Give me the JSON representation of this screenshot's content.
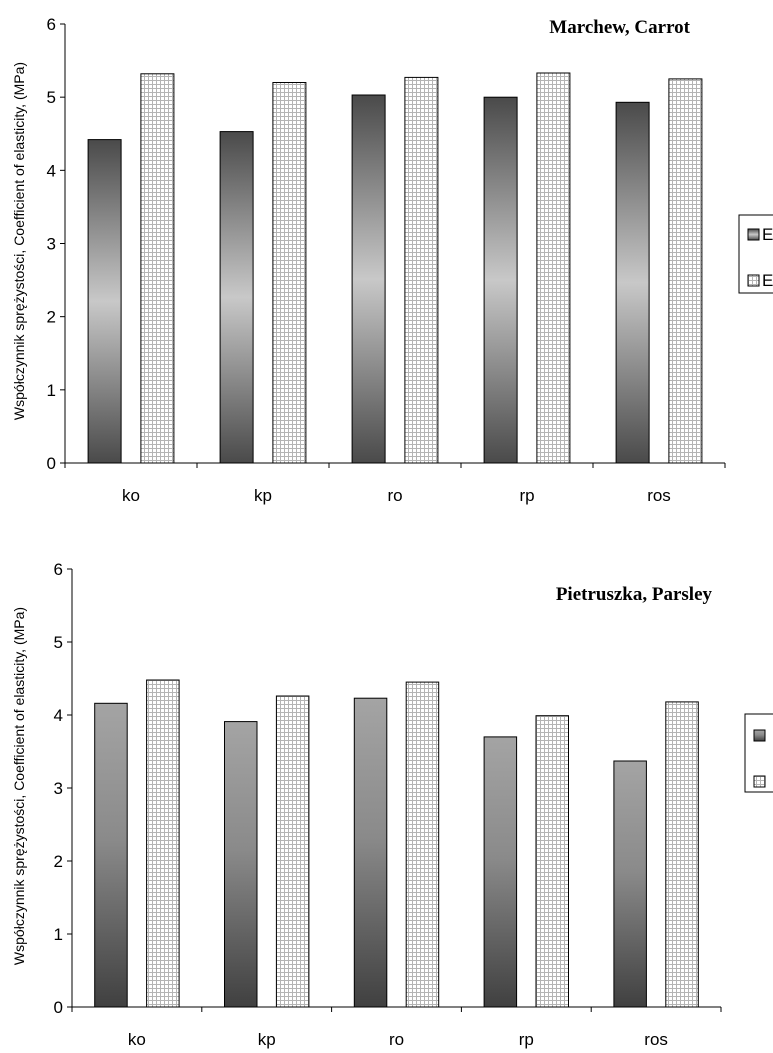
{
  "chart_data": [
    {
      "type": "bar",
      "title": "Marchew, Carrot",
      "ylabel": "Współczynnik sprężystości, Coefficient of elasticity, (MPa)",
      "xlabel": "",
      "categories": [
        "ko",
        "kp",
        "ro",
        "rp",
        "ros"
      ],
      "series": [
        {
          "name": "Ec",
          "values": [
            4.42,
            4.53,
            5.03,
            5.0,
            4.93
          ]
        },
        {
          "name": "Es",
          "values": [
            5.32,
            5.2,
            5.27,
            5.33,
            5.25
          ]
        }
      ],
      "ylim": [
        0,
        6
      ],
      "yticks": [
        0,
        1,
        2,
        3,
        4,
        5,
        6
      ],
      "grid": false,
      "legend_position": "right"
    },
    {
      "type": "bar",
      "title": "Pietruszka, Parsley",
      "ylabel": "Współczynnik sprężystości, Coefficient of elasticity, (MPa)",
      "xlabel": "",
      "categories": [
        "ko",
        "kp",
        "ro",
        "rp",
        "ros"
      ],
      "series": [
        {
          "values": [
            4.16,
            3.91,
            4.23,
            3.7,
            3.37
          ]
        },
        {
          "values": [
            4.48,
            4.26,
            4.45,
            3.99,
            4.18
          ]
        }
      ],
      "ylim": [
        0,
        6
      ],
      "yticks": [
        0,
        1,
        2,
        3,
        4,
        5,
        6
      ],
      "grid": false,
      "legend_position": "right"
    }
  ]
}
